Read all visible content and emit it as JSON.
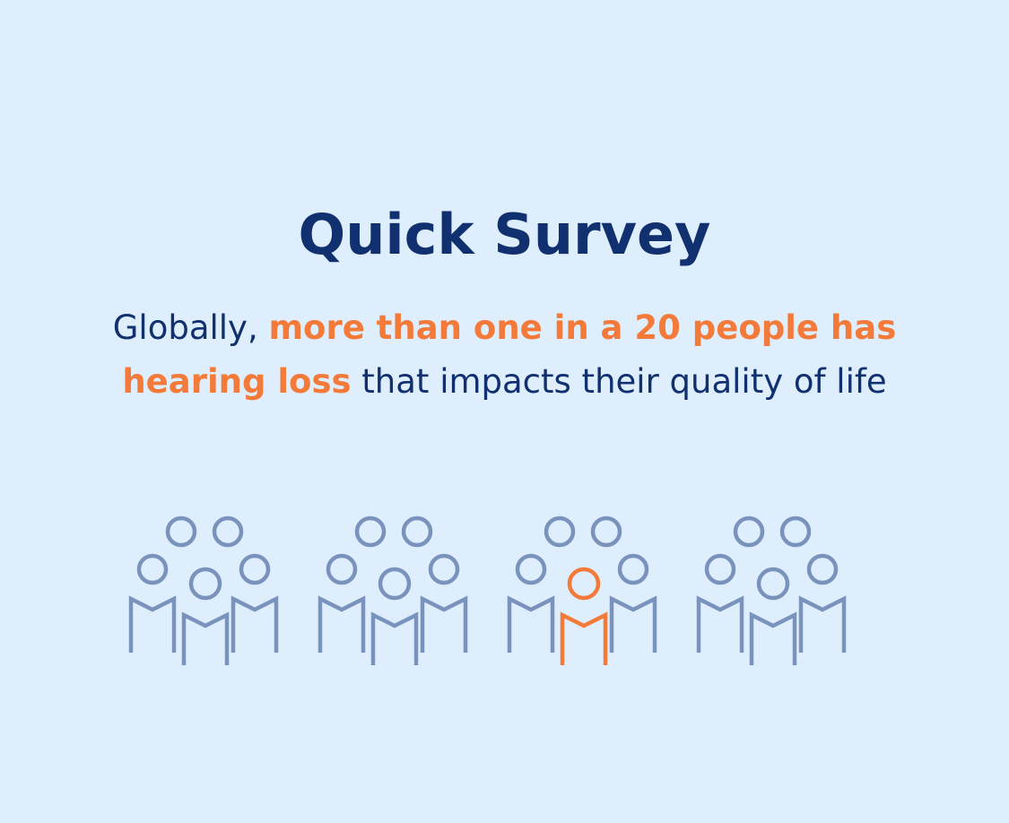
{
  "title": "Quick Survey",
  "subtitle": {
    "prefix": "Globally, ",
    "highlight": "more than one in a 20 people has hearing loss",
    "suffix": " that impacts their quality of life"
  },
  "people_groups": [
    {
      "highlighted": false
    },
    {
      "highlighted": false
    },
    {
      "highlighted": true
    },
    {
      "highlighted": false
    }
  ],
  "icon": "people-group-icon",
  "colors": {
    "background": "#deeefd",
    "title": "#11306f",
    "accent": "#f47a3a",
    "icon": "#7a93bd"
  }
}
